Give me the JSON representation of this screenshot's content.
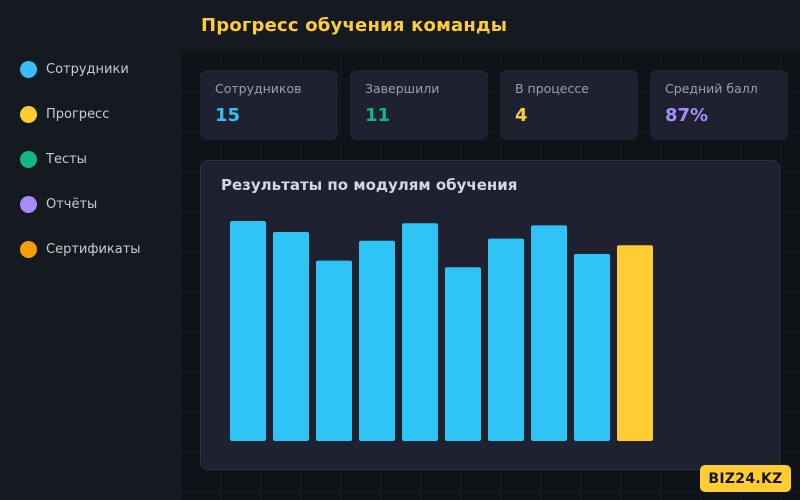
{
  "header": {
    "title": "Прогресс обучения команды"
  },
  "sidebar": {
    "items": [
      {
        "label": "Сотрудники",
        "color": "#38bdf8"
      },
      {
        "label": "Прогресс",
        "color": "#ffcc33"
      },
      {
        "label": "Тесты",
        "color": "#10b981"
      },
      {
        "label": "Отчёты",
        "color": "#a78bfa"
      },
      {
        "label": "Сертификаты",
        "color": "#f59e0b"
      }
    ]
  },
  "stats": [
    {
      "label": "Сотрудников",
      "value": "15",
      "color": "#38bdf8"
    },
    {
      "label": "Завершили",
      "value": "11",
      "color": "#10b981"
    },
    {
      "label": "В процессе",
      "value": "4",
      "color": "#ffcc33"
    },
    {
      "label": "Средний балл",
      "value": "87%",
      "color": "#a78bfa"
    }
  ],
  "chart_data": {
    "type": "bar",
    "title": "Результаты по модулям обучения",
    "values": [
      100,
      95,
      82,
      91,
      99,
      79,
      92,
      98,
      85,
      89
    ],
    "bar_colors": [
      "#2ec4f6",
      "#2ec4f6",
      "#2ec4f6",
      "#2ec4f6",
      "#2ec4f6",
      "#2ec4f6",
      "#2ec4f6",
      "#2ec4f6",
      "#2ec4f6",
      "#ffcc33"
    ],
    "ylim": [
      0,
      100
    ],
    "grid": false,
    "legend": "none"
  },
  "brand": {
    "label": "BIZ24.KZ"
  }
}
